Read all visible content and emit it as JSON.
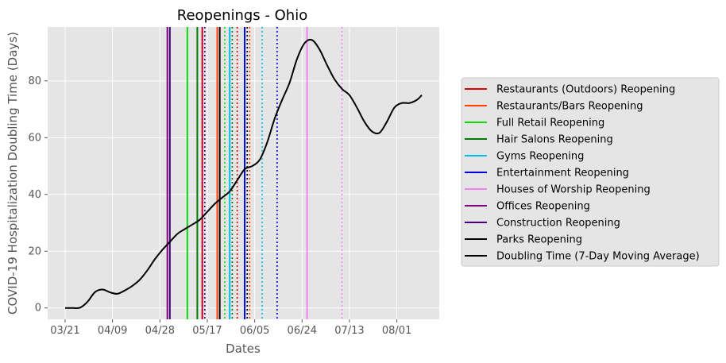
{
  "chart_data": {
    "type": "line",
    "title": "Reopenings - Ohio",
    "xlabel": "Dates",
    "ylabel": "COVID-19 Hospitalization Doubling Time (Days)",
    "x_ticks": [
      {
        "date": "2020-03-21",
        "label": "03/21"
      },
      {
        "date": "2020-04-09",
        "label": "04/09"
      },
      {
        "date": "2020-04-28",
        "label": "04/28"
      },
      {
        "date": "2020-05-17",
        "label": "05/17"
      },
      {
        "date": "2020-06-05",
        "label": "06/05"
      },
      {
        "date": "2020-06-24",
        "label": "06/24"
      },
      {
        "date": "2020-07-13",
        "label": "07/13"
      },
      {
        "date": "2020-08-01",
        "label": "08/01"
      }
    ],
    "xlim": [
      "2020-03-14",
      "2020-08-18"
    ],
    "ylim": [
      -4,
      99
    ],
    "y_ticks": [
      0,
      20,
      40,
      60,
      80
    ],
    "grid": true,
    "legend_position": "right-outside",
    "series": [
      {
        "name": "Doubling Time (7-Day Moving Average)",
        "color": "#000000",
        "points": [
          [
            "2020-03-21",
            0
          ],
          [
            "2020-03-24",
            0
          ],
          [
            "2020-03-27",
            0.1
          ],
          [
            "2020-03-30",
            2.2
          ],
          [
            "2020-04-02",
            5.6
          ],
          [
            "2020-04-05",
            6.5
          ],
          [
            "2020-04-08",
            5.5
          ],
          [
            "2020-04-11",
            5
          ],
          [
            "2020-04-14",
            6.2
          ],
          [
            "2020-04-17",
            7.8
          ],
          [
            "2020-04-20",
            10
          ],
          [
            "2020-04-23",
            13.3
          ],
          [
            "2020-04-26",
            17.2
          ],
          [
            "2020-04-29",
            20.5
          ],
          [
            "2020-05-02",
            23.3
          ],
          [
            "2020-05-05",
            26.1
          ],
          [
            "2020-05-08",
            27.8
          ],
          [
            "2020-05-11",
            29.4
          ],
          [
            "2020-05-14",
            31.1
          ],
          [
            "2020-05-17",
            33.9
          ],
          [
            "2020-05-20",
            36.7
          ],
          [
            "2020-05-23",
            38.9
          ],
          [
            "2020-05-26",
            41.1
          ],
          [
            "2020-05-29",
            45
          ],
          [
            "2020-06-01",
            48.9
          ],
          [
            "2020-06-04",
            50
          ],
          [
            "2020-06-07",
            52.2
          ],
          [
            "2020-06-10",
            58.3
          ],
          [
            "2020-06-13",
            66.7
          ],
          [
            "2020-06-16",
            73.3
          ],
          [
            "2020-06-19",
            79.4
          ],
          [
            "2020-06-22",
            87.8
          ],
          [
            "2020-06-25",
            93.3
          ],
          [
            "2020-06-28",
            94.4
          ],
          [
            "2020-07-01",
            91.1
          ],
          [
            "2020-07-04",
            85.6
          ],
          [
            "2020-07-07",
            80.6
          ],
          [
            "2020-07-10",
            77.2
          ],
          [
            "2020-07-13",
            75
          ],
          [
            "2020-07-16",
            70.6
          ],
          [
            "2020-07-19",
            65.6
          ],
          [
            "2020-07-22",
            62.2
          ],
          [
            "2020-07-25",
            61.7
          ],
          [
            "2020-07-28",
            65.6
          ],
          [
            "2020-07-31",
            70.6
          ],
          [
            "2020-08-03",
            72.2
          ],
          [
            "2020-08-06",
            72.2
          ],
          [
            "2020-08-09",
            73.3
          ],
          [
            "2020-08-11",
            75
          ]
        ]
      }
    ],
    "reopenings": [
      {
        "name": "Restaurants (Outdoors) Reopening",
        "color": "#e00000",
        "dates": [
          "2020-05-15",
          "2020-05-29"
        ]
      },
      {
        "name": "Restaurants/Bars Reopening",
        "color": "#ff4000",
        "dates": [
          "2020-05-21",
          "2020-06-03"
        ]
      },
      {
        "name": "Full Retail Reopening",
        "color": "#00e000",
        "dates": [
          "2020-05-09",
          "2020-05-24"
        ]
      },
      {
        "name": "Hair Salons Reopening",
        "color": "#007a00",
        "dates": [
          "2020-05-13",
          "2020-05-27"
        ]
      },
      {
        "name": "Gyms Reopening",
        "color": "#00bbee",
        "dates": [
          "2020-05-26",
          "2020-06-08"
        ]
      },
      {
        "name": "Entertainment Reopening",
        "color": "#0000dd",
        "dates": [
          "2020-06-01",
          "2020-06-14"
        ]
      },
      {
        "name": "Houses of Worship Reopening",
        "color": "#ee82ee",
        "dates": [
          "2020-06-26",
          "2020-07-10"
        ]
      },
      {
        "name": "Offices Reopening",
        "color": "#800080",
        "dates": [
          "2020-05-01",
          "2020-05-15"
        ]
      },
      {
        "name": "Construction Reopening",
        "color": "#4b0082",
        "dates": [
          "2020-05-02",
          "2020-05-16"
        ]
      },
      {
        "name": "Parks Reopening",
        "color": "#000000",
        "dates": [
          "2020-05-22",
          "2020-06-02"
        ]
      }
    ],
    "legend": [
      {
        "label": "Restaurants (Outdoors) Reopening",
        "color": "#e00000"
      },
      {
        "label": "Restaurants/Bars Reopening",
        "color": "#ff4000"
      },
      {
        "label": "Full Retail Reopening",
        "color": "#00e000"
      },
      {
        "label": "Hair Salons Reopening",
        "color": "#007a00"
      },
      {
        "label": "Gyms Reopening",
        "color": "#00bbee"
      },
      {
        "label": "Entertainment Reopening",
        "color": "#0000dd"
      },
      {
        "label": "Houses of Worship Reopening",
        "color": "#ee82ee"
      },
      {
        "label": "Offices Reopening",
        "color": "#800080"
      },
      {
        "label": "Construction Reopening",
        "color": "#4b0082"
      },
      {
        "label": "Parks Reopening",
        "color": "#000000"
      },
      {
        "label": "Doubling Time (7-Day Moving Average)",
        "color": "#000000"
      }
    ]
  }
}
